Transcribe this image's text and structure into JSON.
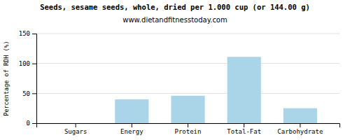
{
  "chart_data": {
    "type": "bar",
    "title": "Seeds, sesame seeds, whole, dried per 1.000 cup (or 144.00 g)",
    "subtitle": "www.dietandfitnesstoday.com",
    "categories": [
      "Sugars",
      "Energy",
      "Protein",
      "Total-Fat",
      "Carbohydrate"
    ],
    "values": [
      0,
      40,
      46,
      111,
      25
    ],
    "color": "#aad4e8",
    "ylabel": "Percentage of RDH (%)",
    "ylim": [
      0,
      150
    ],
    "yticks": [
      0,
      50,
      100,
      150
    ],
    "grid": true
  }
}
